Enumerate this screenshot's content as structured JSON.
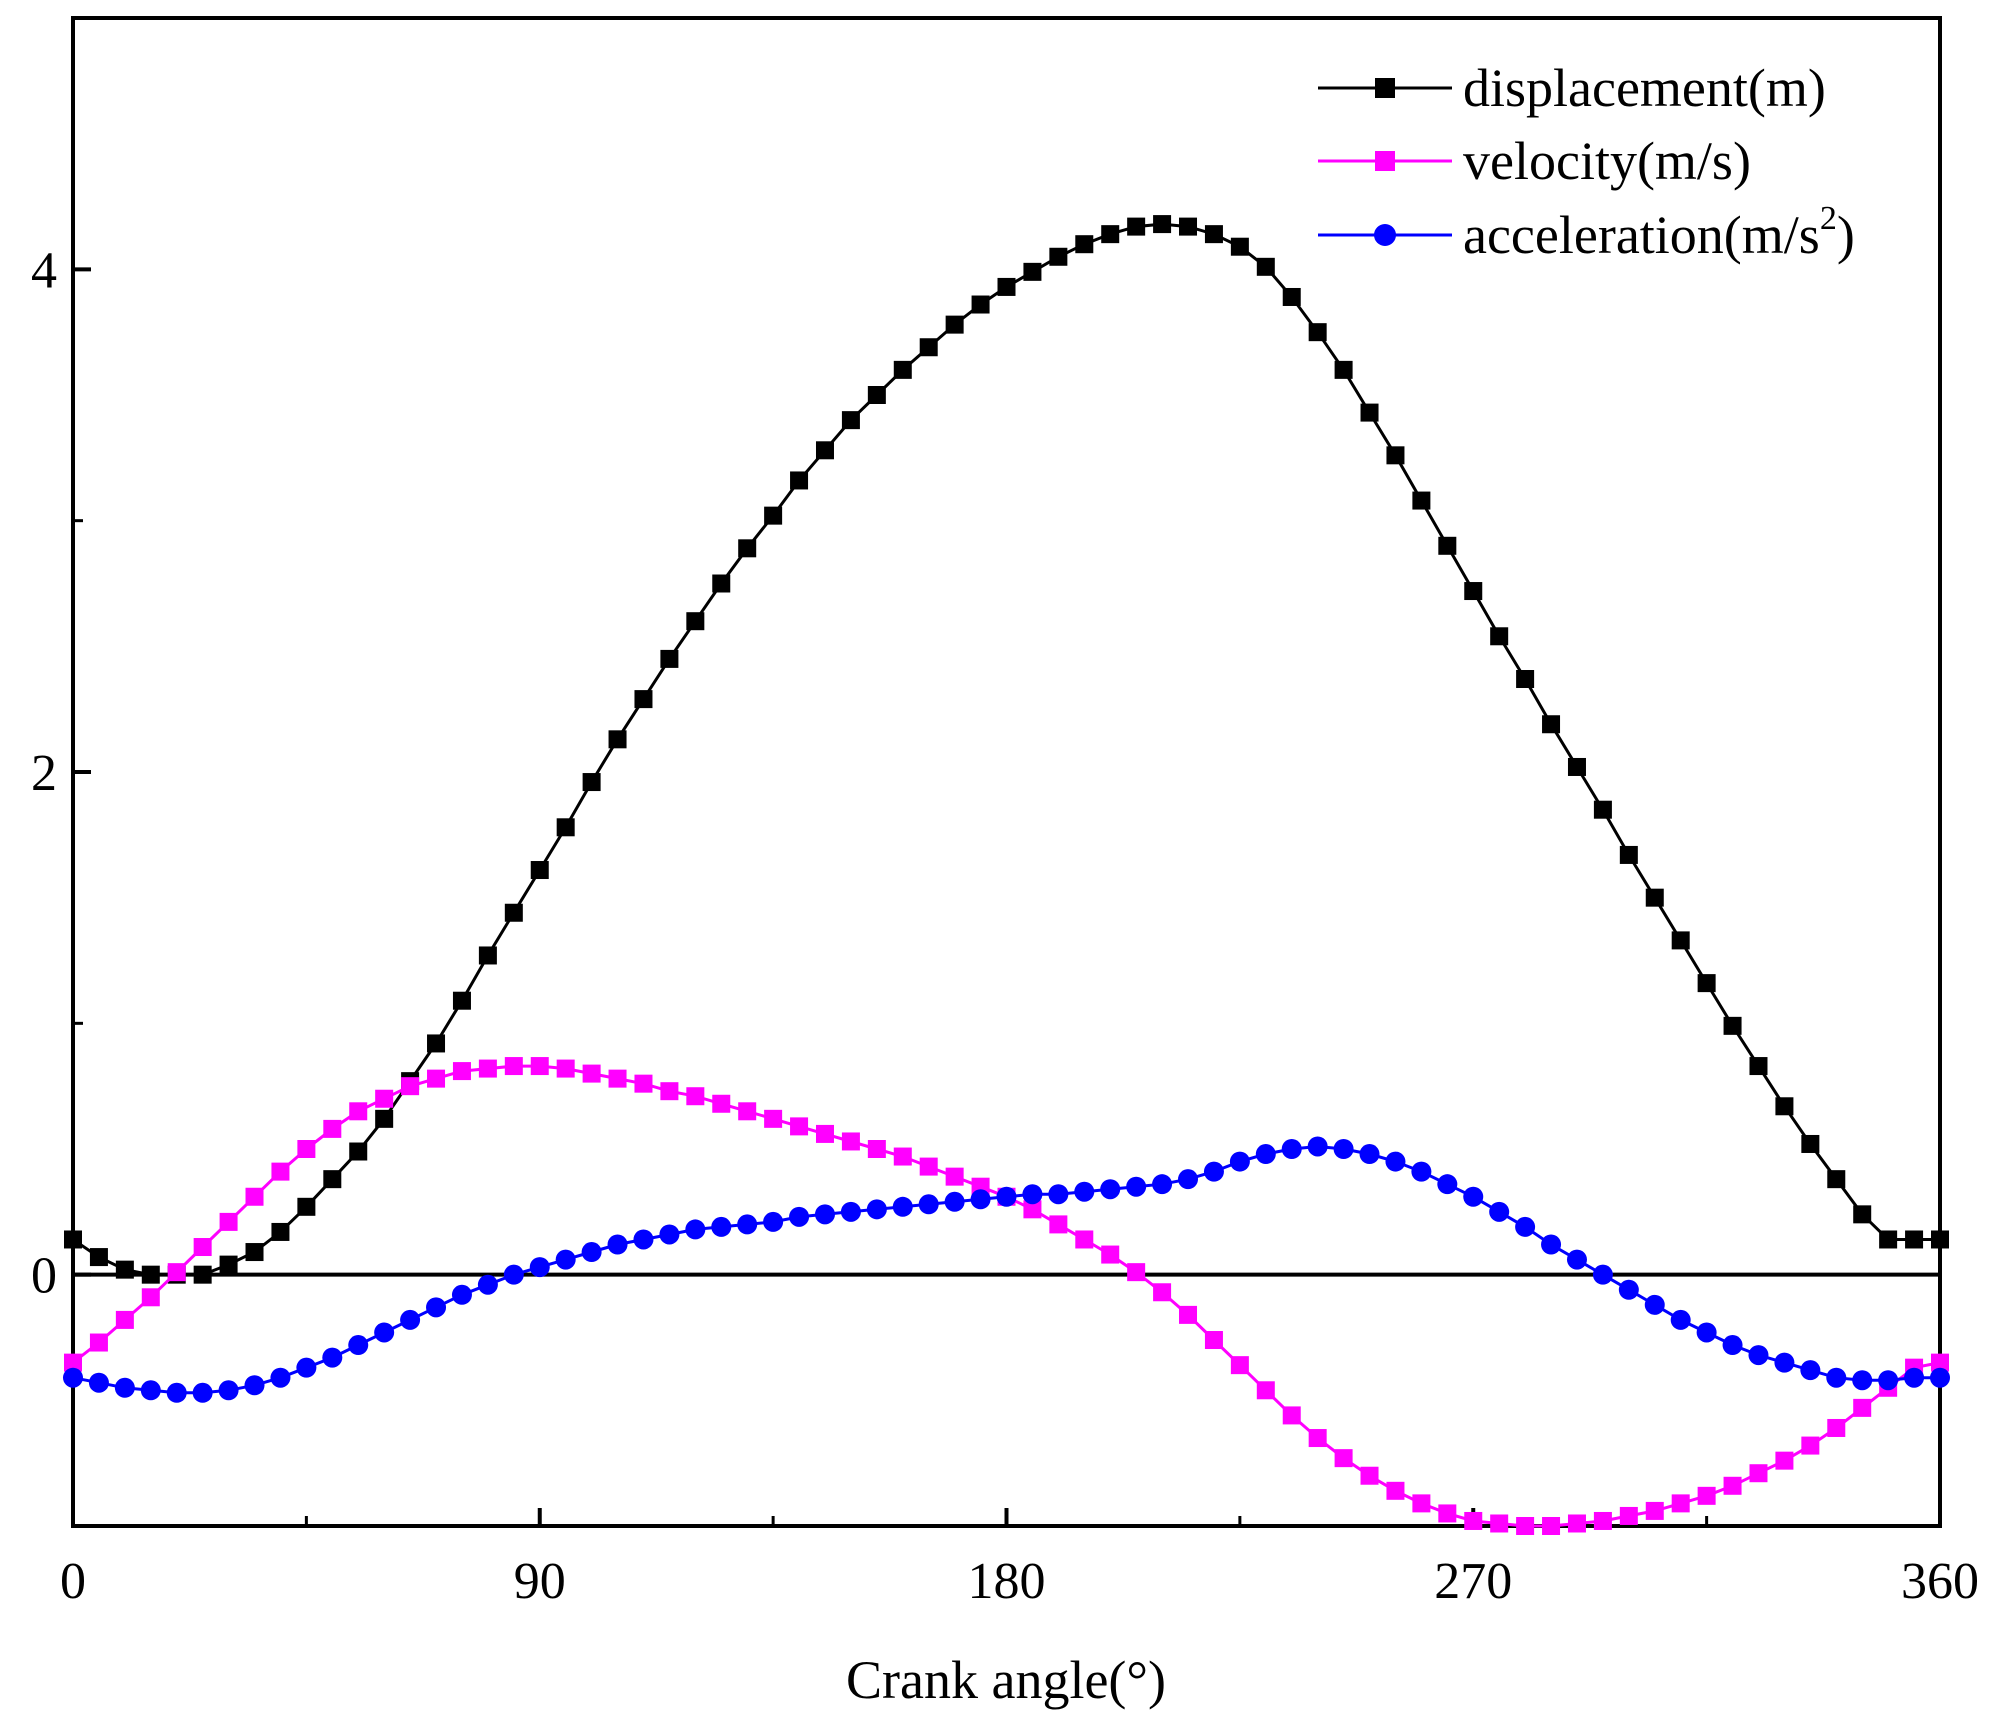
{
  "chart_data": {
    "type": "line",
    "xlabel": "Crank angle(°)",
    "ylabel": "",
    "xlim": [
      0,
      360
    ],
    "ylim": [
      -1,
      5
    ],
    "x_ticks": [
      0,
      90,
      180,
      270,
      360
    ],
    "x_tick_labels": [
      "0",
      "90",
      "180",
      "270",
      "360"
    ],
    "x_minor_ticks": [
      45,
      135,
      225,
      315
    ],
    "y_ticks": [
      0,
      2,
      4
    ],
    "y_tick_labels": [
      "0",
      "2",
      "4"
    ],
    "y_minor_ticks": [
      1,
      3
    ],
    "zero_line": true,
    "legend_position": "top-right",
    "x": [
      0,
      5,
      10,
      15,
      20,
      25,
      30,
      35,
      40,
      45,
      50,
      55,
      60,
      65,
      70,
      75,
      80,
      85,
      90,
      95,
      100,
      105,
      110,
      115,
      120,
      125,
      130,
      135,
      140,
      145,
      150,
      155,
      160,
      165,
      170,
      175,
      180,
      185,
      190,
      195,
      200,
      205,
      210,
      215,
      220,
      225,
      230,
      235,
      240,
      245,
      250,
      255,
      260,
      265,
      270,
      275,
      280,
      285,
      290,
      295,
      300,
      305,
      310,
      315,
      320,
      325,
      330,
      335,
      340,
      345,
      350,
      355,
      360
    ],
    "series": [
      {
        "name": "displacement(m)",
        "color": "#000000",
        "marker": "square",
        "legend_label": "displacement(m)",
        "values": [
          0.14,
          0.07,
          0.02,
          0.0,
          0.0,
          0.0,
          0.04,
          0.09,
          0.17,
          0.27,
          0.38,
          0.49,
          0.62,
          0.77,
          0.92,
          1.09,
          1.27,
          1.44,
          1.61,
          1.78,
          1.96,
          2.13,
          2.29,
          2.45,
          2.6,
          2.75,
          2.89,
          3.02,
          3.16,
          3.28,
          3.4,
          3.5,
          3.6,
          3.69,
          3.78,
          3.86,
          3.93,
          3.99,
          4.05,
          4.1,
          4.14,
          4.17,
          4.18,
          4.17,
          4.14,
          4.09,
          4.01,
          3.89,
          3.75,
          3.6,
          3.43,
          3.26,
          3.08,
          2.9,
          2.72,
          2.54,
          2.37,
          2.19,
          2.02,
          1.85,
          1.67,
          1.5,
          1.33,
          1.16,
          0.99,
          0.83,
          0.67,
          0.52,
          0.38,
          0.24,
          0.14,
          0.14,
          0.14
        ]
      },
      {
        "name": "velocity(m/s)",
        "color": "#ff00ff",
        "marker": "square",
        "legend_label": "velocity(m/s)",
        "values": [
          -0.35,
          -0.27,
          -0.18,
          -0.09,
          0.01,
          0.11,
          0.21,
          0.31,
          0.41,
          0.5,
          0.58,
          0.65,
          0.7,
          0.75,
          0.78,
          0.81,
          0.82,
          0.83,
          0.83,
          0.82,
          0.8,
          0.78,
          0.76,
          0.73,
          0.71,
          0.68,
          0.65,
          0.62,
          0.59,
          0.56,
          0.53,
          0.5,
          0.47,
          0.43,
          0.39,
          0.35,
          0.31,
          0.26,
          0.2,
          0.14,
          0.08,
          0.01,
          -0.07,
          -0.16,
          -0.26,
          -0.36,
          -0.46,
          -0.56,
          -0.65,
          -0.73,
          -0.8,
          -0.86,
          -0.91,
          -0.95,
          -0.98,
          -0.99,
          -1.0,
          -1.0,
          -0.99,
          -0.98,
          -0.96,
          -0.94,
          -0.91,
          -0.88,
          -0.84,
          -0.79,
          -0.74,
          -0.68,
          -0.61,
          -0.53,
          -0.45,
          -0.37,
          -0.35
        ]
      },
      {
        "name": "acceleration(m/s²)",
        "color": "#0000ff",
        "marker": "circle",
        "legend_label": "acceleration(m/s",
        "legend_superscript": "2",
        "legend_suffix": ")",
        "values": [
          -0.41,
          -0.43,
          -0.45,
          -0.46,
          -0.47,
          -0.47,
          -0.46,
          -0.44,
          -0.41,
          -0.37,
          -0.33,
          -0.28,
          -0.23,
          -0.18,
          -0.13,
          -0.08,
          -0.04,
          0.0,
          0.03,
          0.06,
          0.09,
          0.12,
          0.14,
          0.16,
          0.18,
          0.19,
          0.2,
          0.21,
          0.23,
          0.24,
          0.25,
          0.26,
          0.27,
          0.28,
          0.29,
          0.3,
          0.31,
          0.32,
          0.32,
          0.33,
          0.34,
          0.35,
          0.36,
          0.38,
          0.41,
          0.45,
          0.48,
          0.5,
          0.51,
          0.5,
          0.48,
          0.45,
          0.41,
          0.36,
          0.31,
          0.25,
          0.19,
          0.12,
          0.06,
          0.0,
          -0.06,
          -0.12,
          -0.18,
          -0.23,
          -0.28,
          -0.32,
          -0.35,
          -0.38,
          -0.41,
          -0.42,
          -0.42,
          -0.41,
          -0.41
        ]
      }
    ]
  }
}
